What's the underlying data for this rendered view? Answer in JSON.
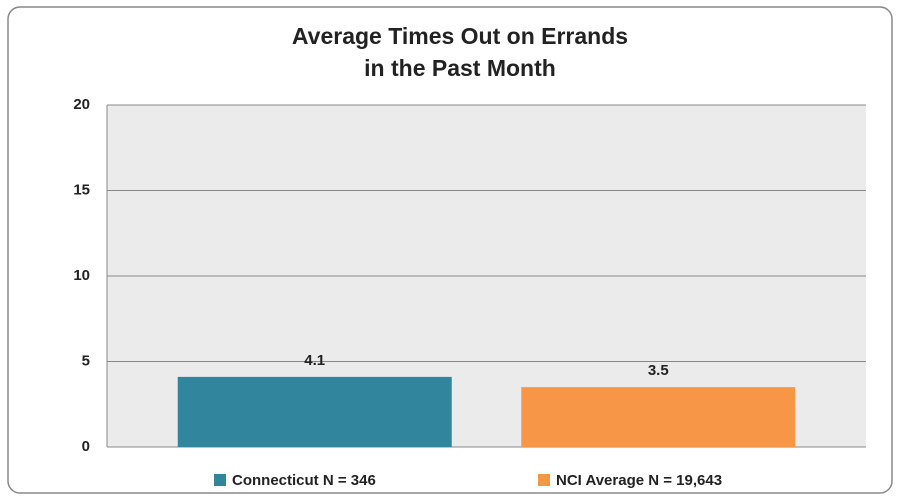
{
  "chart_data": {
    "type": "bar",
    "title": [
      "Average Times Out on Errands",
      "in the Past Month"
    ],
    "categories": [
      null
    ],
    "series": [
      {
        "name": "Connecticut N = 346",
        "color": "#31859c",
        "values": [
          4.1
        ]
      },
      {
        "name": "NCI Average N = 19,643",
        "color": "#f79646",
        "values": [
          3.5
        ]
      }
    ],
    "ylim": [
      0,
      20
    ],
    "yticks": [
      0,
      5,
      10,
      15,
      20
    ],
    "grid": true,
    "legend": "bottom"
  }
}
